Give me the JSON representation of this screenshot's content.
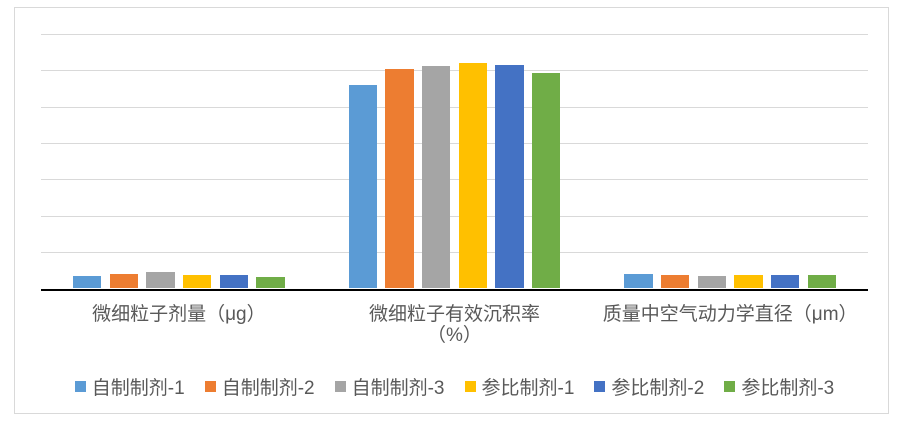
{
  "chart_data": {
    "type": "bar",
    "title": "",
    "categories": [
      "微细粒子剂量（μg）",
      "微细粒子有效沉积率（%）",
      "质量中空气动力学直径（μm）"
    ],
    "category_label_lines": [
      [
        "微细粒子剂量（μg）"
      ],
      [
        "微细粒子有效沉积率",
        "（%）"
      ],
      [
        "质量中空气动力学直径（μm）"
      ]
    ],
    "series": [
      {
        "name": "自制制剂-1",
        "color": "#5B9BD5",
        "values": [
          3.5,
          55.9,
          4.1
        ]
      },
      {
        "name": "自制制剂-2",
        "color": "#ED7D31",
        "values": [
          3.9,
          60.5,
          3.8
        ]
      },
      {
        "name": "自制制剂-3",
        "color": "#A5A5A5",
        "values": [
          4.6,
          61.2,
          3.5
        ]
      },
      {
        "name": "参比制剂-1",
        "color": "#FFC000",
        "values": [
          3.8,
          61.9,
          3.7
        ]
      },
      {
        "name": "参比制剂-2",
        "color": "#4472C4",
        "values": [
          3.8,
          61.4,
          3.8
        ]
      },
      {
        "name": "参比制剂-3",
        "color": "#70AD47",
        "values": [
          3.3,
          59.3,
          3.8
        ]
      }
    ],
    "xlabel": "",
    "ylabel": "",
    "ylim": [
      0,
      70
    ],
    "grid_step": 10,
    "grid": true,
    "y_tick_labels_visible": false,
    "legend_position": "bottom"
  },
  "style": {
    "gridline_color": "#D9D9D9",
    "axis_color": "#000000",
    "label_color": "#595959",
    "frame_border_color": "#D9D9D9",
    "background_color": "#FFFFFF"
  }
}
